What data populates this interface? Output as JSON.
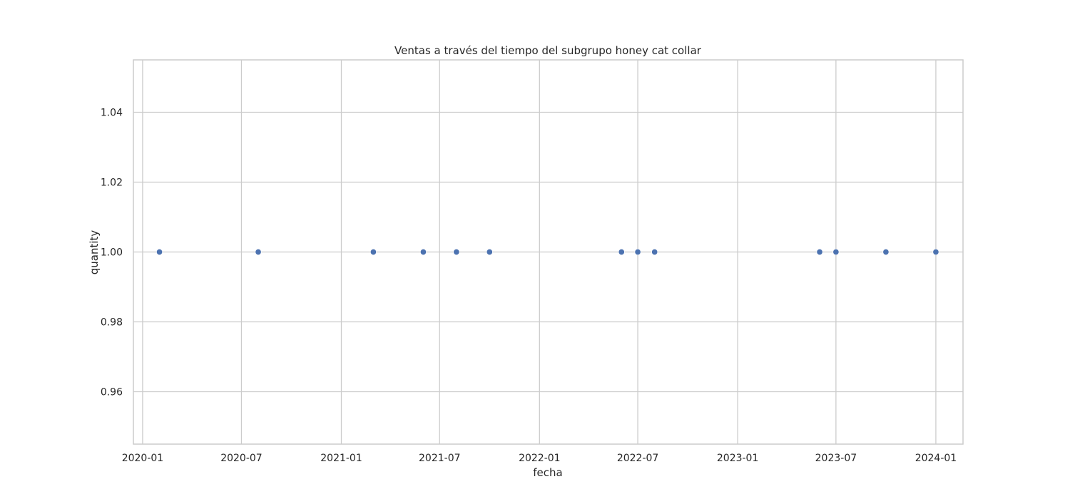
{
  "chart_data": {
    "type": "scatter",
    "title": "Ventas a través del tiempo del subgrupo honey cat collar",
    "xlabel": "fecha",
    "ylabel": "quantity",
    "x_ticks": [
      "2020-01",
      "2020-07",
      "2021-01",
      "2021-07",
      "2022-01",
      "2022-07",
      "2023-01",
      "2023-07",
      "2024-01"
    ],
    "y_ticks": [
      "0.96",
      "0.98",
      "1.00",
      "1.02",
      "1.04"
    ],
    "xlim": [
      "2019-12-15",
      "2024-02-20"
    ],
    "ylim": [
      0.945,
      1.055
    ],
    "grid": true,
    "points": [
      {
        "x": "2020-02-01",
        "y": 1.0
      },
      {
        "x": "2020-08-01",
        "y": 1.0
      },
      {
        "x": "2021-03-01",
        "y": 1.0
      },
      {
        "x": "2021-06-01",
        "y": 1.0
      },
      {
        "x": "2021-08-01",
        "y": 1.0
      },
      {
        "x": "2021-10-01",
        "y": 1.0
      },
      {
        "x": "2022-06-01",
        "y": 1.0
      },
      {
        "x": "2022-07-01",
        "y": 1.0
      },
      {
        "x": "2022-08-01",
        "y": 1.0
      },
      {
        "x": "2023-06-01",
        "y": 1.0
      },
      {
        "x": "2023-07-01",
        "y": 1.0
      },
      {
        "x": "2023-10-01",
        "y": 1.0
      },
      {
        "x": "2024-01-01",
        "y": 1.0
      }
    ],
    "point_color": "#4c72b0"
  }
}
